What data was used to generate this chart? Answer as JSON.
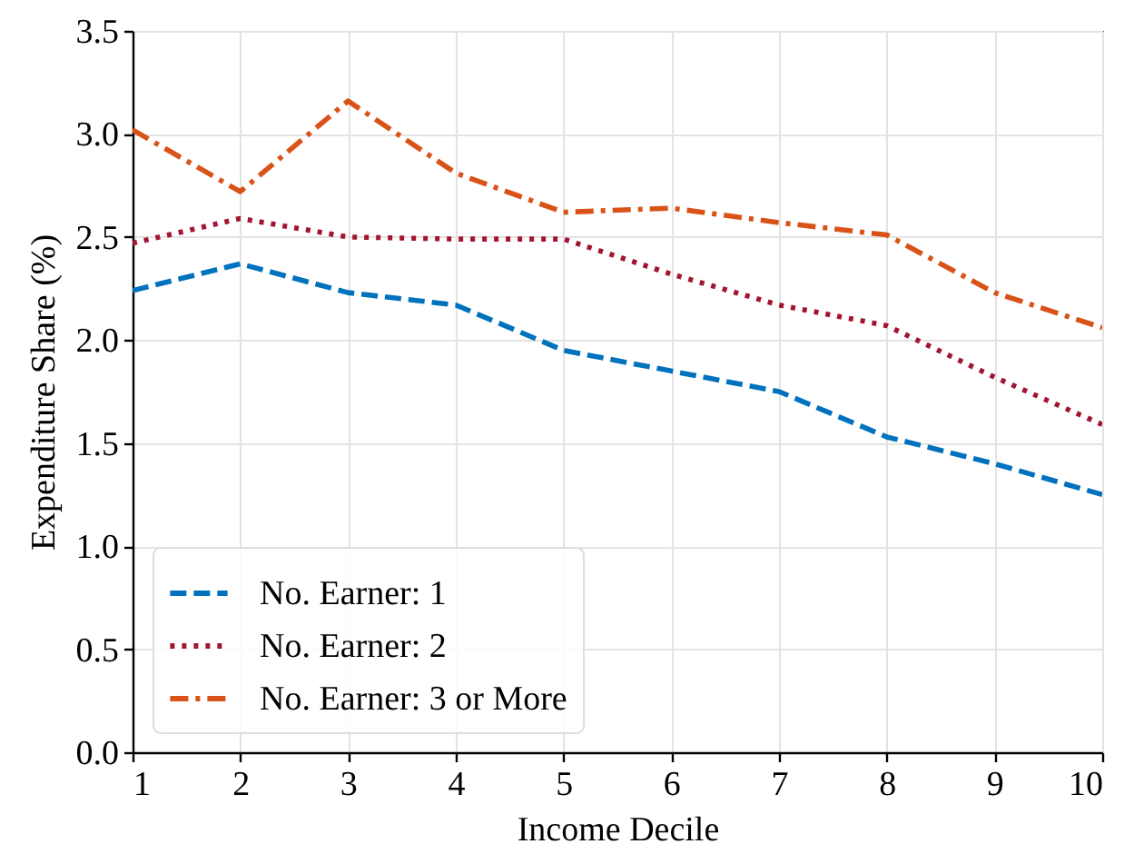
{
  "chart_data": {
    "type": "line",
    "xlabel": "Income Decile",
    "ylabel": "Expenditure Share (%)",
    "x": [
      1,
      2,
      3,
      4,
      5,
      6,
      7,
      8,
      9,
      10
    ],
    "series": [
      {
        "name": "No. Earner: 1",
        "color": "#0072bd",
        "line_style": "dashed",
        "values": [
          2.24,
          2.37,
          2.23,
          2.17,
          1.95,
          1.85,
          1.75,
          1.53,
          1.4,
          1.25
        ]
      },
      {
        "name": "No. Earner: 2",
        "color": "#a2142f",
        "line_style": "dotted",
        "values": [
          2.47,
          2.59,
          2.5,
          2.49,
          2.49,
          2.32,
          2.17,
          2.07,
          1.82,
          1.59
        ]
      },
      {
        "name": "No. Earner: 3 or More",
        "color": "#d95319",
        "line_style": "dashdot",
        "values": [
          3.02,
          2.72,
          3.16,
          2.81,
          2.62,
          2.64,
          2.57,
          2.51,
          2.23,
          2.06
        ]
      }
    ],
    "xlim": [
      1,
      10
    ],
    "xticks": [
      1,
      2,
      3,
      4,
      5,
      6,
      7,
      8,
      9,
      10
    ],
    "ylim": [
      0,
      3.5
    ],
    "yticks": [
      {
        "value": 0,
        "label": "0.0"
      },
      0.5,
      {
        "value": 1,
        "label": "1.0"
      },
      1.5,
      {
        "value": 2,
        "label": "2.0"
      },
      2.5,
      {
        "value": 3,
        "label": "3.0"
      },
      3.5
    ],
    "grid": true,
    "legend": "bottom left"
  }
}
